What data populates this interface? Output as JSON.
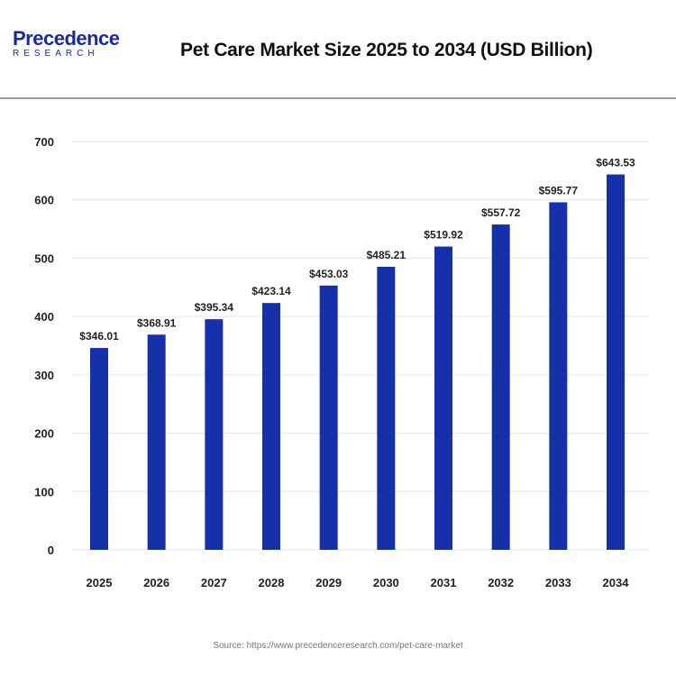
{
  "header": {
    "logo_line1": "Precedence",
    "logo_line2": "RESEARCH",
    "title": "Pet Care Market Size 2025 to 2034 (USD Billion)"
  },
  "source": "Source: https://www.precedenceresearch.com/pet-care-market",
  "chart_data": {
    "type": "bar",
    "title": "Pet Care Market Size 2025 to 2034 (USD Billion)",
    "categories": [
      "2025",
      "2026",
      "2027",
      "2028",
      "2029",
      "2030",
      "2031",
      "2032",
      "2033",
      "2034"
    ],
    "values": [
      346.01,
      368.91,
      395.34,
      423.14,
      453.03,
      485.21,
      519.92,
      557.72,
      595.77,
      643.53
    ],
    "data_labels": [
      "$346.01",
      "$368.91",
      "$395.34",
      "$423.14",
      "$453.03",
      "$485.21",
      "$519.92",
      "$557.72",
      "$595.77",
      "$643.53"
    ],
    "yticks": [
      "0",
      "100",
      "200",
      "300",
      "400",
      "500",
      "600",
      "700"
    ],
    "ylim": [
      0,
      700
    ],
    "grid": true,
    "bar_color": "#1530a8"
  }
}
